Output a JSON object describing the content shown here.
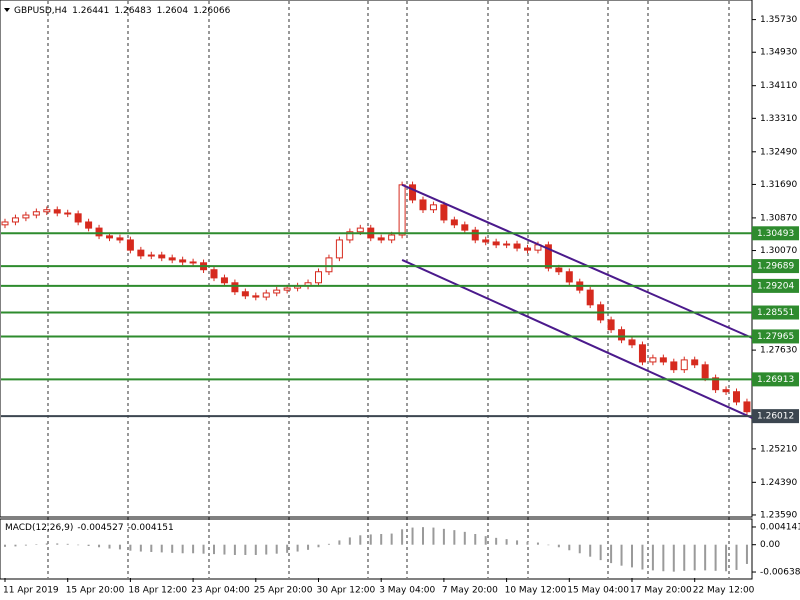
{
  "header": {
    "symbol": "GBPUSD,H4",
    "open": 1.26441,
    "high": 1.26483,
    "low": 1.2604,
    "close": 1.26066
  },
  "chart_data": {
    "type": "candlestick",
    "x": [
      "11 Apr 2019",
      null,
      null,
      null,
      null,
      null,
      "15 Apr 20:00",
      null,
      null,
      null,
      null,
      null,
      "18 Apr 12:00",
      null,
      null,
      null,
      null,
      null,
      "23 Apr 04:00",
      null,
      null,
      null,
      null,
      null,
      "25 Apr 20:00",
      null,
      null,
      null,
      null,
      null,
      "30 Apr 12:00",
      null,
      null,
      null,
      null,
      null,
      "3 May 04:00",
      null,
      null,
      null,
      null,
      null,
      "7 May 20:00",
      null,
      null,
      null,
      null,
      null,
      "10 May 12:00",
      null,
      null,
      null,
      null,
      null,
      "15 May 04:00",
      null,
      null,
      null,
      null,
      null,
      "17 May 20:00",
      null,
      null,
      null,
      null,
      null,
      "22 May 12:00",
      null,
      null,
      null,
      null,
      null
    ],
    "open": [
      1.307,
      1.3077,
      1.3087,
      1.3094,
      1.3102,
      1.3107,
      1.3099,
      1.3097,
      1.3077,
      1.3062,
      1.3043,
      1.3038,
      1.3033,
      1.3008,
      1.2994,
      1.2996,
      1.2989,
      1.2984,
      1.2979,
      1.2977,
      1.296,
      1.294,
      1.2928,
      1.2906,
      1.2896,
      1.2893,
      1.2903,
      1.291,
      1.2915,
      1.292,
      1.2928,
      1.2955,
      1.2989,
      1.3033,
      1.3053,
      1.3062,
      1.3038,
      1.3033,
      1.3045,
      1.3168,
      1.3131,
      1.3107,
      1.3119,
      1.3082,
      1.307,
      1.3057,
      1.3033,
      1.3028,
      1.3021,
      1.3023,
      1.3013,
      1.3008,
      1.3021,
      1.2964,
      1.2955,
      1.293,
      1.291,
      1.2874,
      1.2837,
      1.2813,
      1.2788,
      1.2776,
      1.2734,
      1.2744,
      1.2734,
      1.2715,
      1.2739,
      1.2727,
      1.2695,
      1.2666,
      1.2661,
      1.2636
    ],
    "high": [
      1.3085,
      1.3095,
      1.3102,
      1.311,
      1.3115,
      1.3115,
      1.3107,
      1.3105,
      1.3085,
      1.307,
      1.3051,
      1.3046,
      1.3041,
      1.3016,
      1.3004,
      1.3004,
      1.2997,
      1.2992,
      1.2987,
      1.2985,
      1.2968,
      1.2948,
      1.2936,
      1.2914,
      1.2904,
      1.2911,
      1.2918,
      1.2923,
      1.2928,
      1.2936,
      1.2963,
      1.2997,
      1.3041,
      1.3061,
      1.307,
      1.307,
      1.3046,
      1.3053,
      1.3176,
      1.3176,
      1.3139,
      1.3127,
      1.3127,
      1.309,
      1.3078,
      1.3065,
      1.3041,
      1.3036,
      1.3031,
      1.3031,
      1.3021,
      1.3029,
      1.3029,
      1.2972,
      1.2963,
      1.2938,
      1.2918,
      1.2882,
      1.2845,
      1.2821,
      1.2796,
      1.2784,
      1.2752,
      1.2752,
      1.2742,
      1.2747,
      1.2747,
      1.2735,
      1.2703,
      1.2674,
      1.2669,
      1.2644
    ],
    "low": [
      1.3062,
      1.3069,
      1.3079,
      1.3086,
      1.3094,
      1.3091,
      1.3089,
      1.3069,
      1.3054,
      1.3035,
      1.303,
      1.3025,
      1.3,
      1.2986,
      1.2986,
      1.2981,
      1.2976,
      1.2971,
      1.2969,
      1.2952,
      1.2932,
      1.292,
      1.2898,
      1.2888,
      1.2885,
      1.2885,
      1.2895,
      1.2902,
      1.2907,
      1.2912,
      1.292,
      1.2947,
      1.2981,
      1.3025,
      1.3045,
      1.303,
      1.3025,
      1.3025,
      1.3037,
      1.3123,
      1.3099,
      1.3099,
      1.3074,
      1.3062,
      1.3049,
      1.3025,
      1.302,
      1.3013,
      1.3013,
      1.3005,
      1.3,
      1.3,
      1.2956,
      1.2947,
      1.2922,
      1.2902,
      1.2866,
      1.2829,
      1.2805,
      1.278,
      1.2768,
      1.2726,
      1.2726,
      1.2726,
      1.2707,
      1.2707,
      1.2719,
      1.2687,
      1.2658,
      1.2653,
      1.2628,
      1.2604
    ],
    "close": [
      1.3077,
      1.3087,
      1.3094,
      1.3102,
      1.3107,
      1.3099,
      1.3097,
      1.3077,
      1.3062,
      1.3043,
      1.3038,
      1.3033,
      1.3008,
      1.2994,
      1.2996,
      1.2989,
      1.2984,
      1.2979,
      1.2977,
      1.296,
      1.294,
      1.2928,
      1.2906,
      1.2896,
      1.2893,
      1.2903,
      1.291,
      1.2915,
      1.292,
      1.2928,
      1.2955,
      1.2989,
      1.3033,
      1.3053,
      1.3062,
      1.3038,
      1.3033,
      1.3045,
      1.3168,
      1.3131,
      1.3107,
      1.3119,
      1.3082,
      1.307,
      1.3057,
      1.3033,
      1.3028,
      1.3021,
      1.3023,
      1.3013,
      1.3008,
      1.3021,
      1.2964,
      1.2955,
      1.293,
      1.291,
      1.2874,
      1.2837,
      1.2813,
      1.2788,
      1.2776,
      1.2734,
      1.2744,
      1.2734,
      1.2715,
      1.2739,
      1.2727,
      1.2695,
      1.2666,
      1.2661,
      1.2636,
      1.2612
    ],
    "bull_color": "#d62a1e",
    "bear_color": "#d62a1e",
    "ylim": [
      1.2354,
      1.3621
    ],
    "yticks": [
      {
        "value": 1.3573,
        "label": "1.35730"
      },
      {
        "value": 1.3493,
        "label": "1.34930"
      },
      {
        "value": 1.3411,
        "label": "1.34110"
      },
      {
        "value": 1.3331,
        "label": "1.33310"
      },
      {
        "value": 1.3249,
        "label": "1.32490"
      },
      {
        "value": 1.3169,
        "label": "1.31690"
      },
      {
        "value": 1.3087,
        "label": "1.30870"
      },
      {
        "value": 1.3007,
        "label": "1.30070"
      },
      {
        "value": 1.2763,
        "label": "1.27630"
      },
      {
        "value": 1.2521,
        "label": "1.25210"
      },
      {
        "value": 1.2439,
        "label": "1.24390"
      },
      {
        "value": 1.2359,
        "label": "1.23590"
      }
    ],
    "levels": [
      {
        "price": 1.30493,
        "color": "#2e8b2e"
      },
      {
        "price": 1.29689,
        "color": "#2e8b2e"
      },
      {
        "price": 1.29204,
        "color": "#2e8b2e"
      },
      {
        "price": 1.28551,
        "color": "#2e8b2e"
      },
      {
        "price": 1.27965,
        "color": "#2e8b2e"
      },
      {
        "price": 1.26913,
        "color": "#2e8b2e"
      },
      {
        "price": 1.26012,
        "color": "#3c4650"
      }
    ],
    "channel": {
      "color": "#4b1a8c",
      "upper": [
        1.3168,
        1.2793
      ],
      "lower": [
        1.2984,
        1.2597
      ]
    },
    "macd": {
      "name": "MACD(12,26,9)",
      "main": -0.004527,
      "signal": -0.004151,
      "color": "#9a9a9a",
      "values": [
        -0.0005,
        -0.0004,
        -0.0002,
        0.0001,
        0.0003,
        0.0003,
        0.0002,
        0,
        -0.0003,
        -0.0006,
        -0.0009,
        -0.0011,
        -0.0014,
        -0.0016,
        -0.0017,
        -0.0018,
        -0.0019,
        -0.002,
        -0.002,
        -0.0021,
        -0.0022,
        -0.0023,
        -0.0024,
        -0.0024,
        -0.0024,
        -0.0023,
        -0.0021,
        -0.0019,
        -0.0016,
        -0.0012,
        -0.0006,
        0.0002,
        0.001,
        0.0017,
        0.0022,
        0.0024,
        0.0025,
        0.0026,
        0.0036,
        0.004,
        0.0041,
        0.004,
        0.0037,
        0.0034,
        0.003,
        0.0025,
        0.002,
        0.0016,
        0.0013,
        0.001,
        0.0007,
        0.0005,
        0,
        -0.0006,
        -0.0013,
        -0.002,
        -0.0028,
        -0.0036,
        -0.0043,
        -0.0049,
        -0.0053,
        -0.0058,
        -0.006,
        -0.0062,
        -0.0063,
        -0.0061,
        -0.006,
        -0.006,
        -0.0061,
        -0.0062,
        -0.0059,
        -0.0045
      ],
      "ylim": [
        -0.00778,
        0.00577
      ],
      "yticks": [
        0.004141,
        {
          "value": 0,
          "label": "0.00"
        },
        -0.006384
      ]
    }
  }
}
